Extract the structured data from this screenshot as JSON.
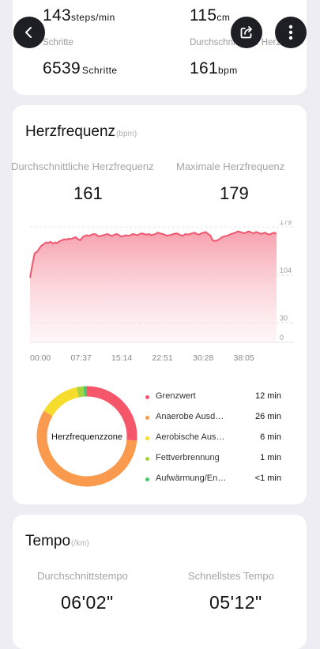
{
  "top_stats": {
    "cadence": {
      "value": "143",
      "unit": "steps/min",
      "label": "Schritte"
    },
    "stride": {
      "value": "115",
      "unit": "cm",
      "label": "Durchschnittliche Herzfreq"
    },
    "steps": {
      "value": "6539",
      "unit": "Schritte"
    },
    "max_hr": {
      "value": "161",
      "unit": "bpm"
    }
  },
  "icons": {
    "back": "chevron-left-icon",
    "share": "share-icon",
    "more": "more-vertical-icon"
  },
  "heart_rate": {
    "title": "Herzfrequenz",
    "unit": "(bpm)",
    "avg_label": "Durchschnittliche Herzfrequenz",
    "max_label": "Maximale Herzfrequenz",
    "avg_value": "161",
    "max_value": "179"
  },
  "chart_data": {
    "type": "area",
    "x_tick_labels": [
      "00:00",
      "07:37",
      "15:14",
      "22:51",
      "30:28",
      "38:05"
    ],
    "y_tick_labels": [
      "179",
      "104",
      "30",
      "0"
    ],
    "ylim": [
      0,
      179
    ],
    "grid": "dashed-horizontal",
    "color": "#f0576e",
    "series": [
      {
        "values": [
          100,
          120,
          138,
          140,
          145,
          150,
          152,
          155,
          154,
          156,
          153,
          155,
          154,
          157,
          158,
          160,
          159,
          161,
          160,
          162,
          163,
          160,
          158,
          163,
          165,
          166,
          165,
          167,
          168,
          167,
          164,
          165,
          166,
          167,
          168,
          166,
          165,
          167,
          168,
          166,
          164,
          165,
          166,
          165,
          166,
          168,
          167,
          166,
          168,
          169,
          168,
          167,
          168,
          166,
          167,
          168,
          170,
          169,
          168,
          167,
          165,
          166,
          167,
          168,
          169,
          168,
          166,
          165,
          168,
          167,
          168,
          169,
          170,
          168,
          167,
          169,
          170,
          171,
          168,
          166,
          158,
          157,
          158,
          160,
          163,
          164,
          165,
          166,
          168,
          169,
          170,
          172,
          171,
          170,
          169,
          171,
          172,
          170,
          169,
          171,
          170,
          168,
          169,
          170,
          168,
          167,
          169,
          170,
          168
        ]
      }
    ]
  },
  "zones": {
    "center_label": "Herzfrequenzzone",
    "items": [
      {
        "name": "Grenzwert",
        "value": "12 min",
        "minutes": 12,
        "color": "#f5566a"
      },
      {
        "name": "Anaerobe Ausdauer",
        "value": "26 min",
        "minutes": 26,
        "color": "#fa9a4e"
      },
      {
        "name": "Aerobische Ausdauer",
        "value": "6 min",
        "minutes": 6,
        "color": "#f6dc2c"
      },
      {
        "name": "Fettverbrennung",
        "value": "1 min",
        "minutes": 1,
        "color": "#a7d43a"
      },
      {
        "name": "Aufwärmung/Entspannung",
        "value": "<1 min",
        "minutes": 0.5,
        "color": "#4ac66a"
      }
    ]
  },
  "tempo": {
    "title": "Tempo",
    "unit": "(/km)",
    "avg_label": "Durchschnittstempo",
    "fast_label": "Schnellstes Tempo",
    "avg_value": "06'02\"",
    "fast_value": "05'12\""
  }
}
